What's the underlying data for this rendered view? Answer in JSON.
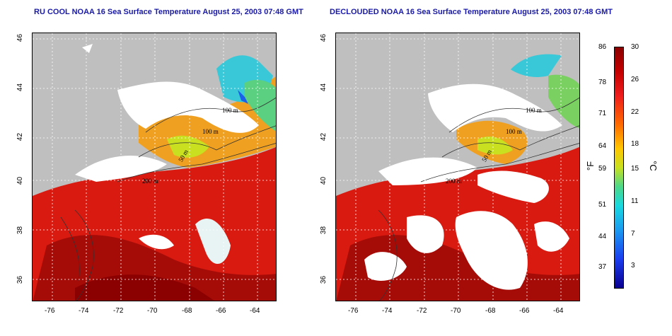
{
  "panels": [
    {
      "id": "left",
      "title": "RU COOL NOAA 16 Sea Surface Temperature August 25, 2003 07:48 GMT"
    },
    {
      "id": "right",
      "title": "DECLOUDED NOAA 16 Sea Surface Temperature August 25, 2003 07:48 GMT"
    }
  ],
  "axes": {
    "x_ticks": [
      "-76",
      "-74",
      "-72",
      "-70",
      "-68",
      "-66",
      "-64"
    ],
    "y_ticks": [
      "46",
      "44",
      "42",
      "40",
      "38",
      "36"
    ]
  },
  "contour_labels": [
    "100 m",
    "100 m",
    "50 m",
    "200 m"
  ],
  "colorbar": {
    "f_ticks": [
      "86",
      "78",
      "71",
      "64",
      "59",
      "51",
      "44",
      "37"
    ],
    "c_ticks": [
      "30",
      "26",
      "22",
      "18",
      "15",
      "11",
      "7",
      "3"
    ],
    "f_unit": "°F",
    "c_unit": "°C",
    "colors": [
      "#8b0000",
      "#ee1c1c",
      "#ff6a00",
      "#ffc600",
      "#4cd88a",
      "#18d8e0",
      "#1a3ef0",
      "#0a0090"
    ]
  },
  "map_colors": {
    "land": "#bfbfbf",
    "cloud": "#ffffff",
    "warm": "#d81a10",
    "hot": "#a50c08",
    "mid": "#f0a020",
    "cool": "#38c8d8",
    "cold": "#1a60e8"
  }
}
